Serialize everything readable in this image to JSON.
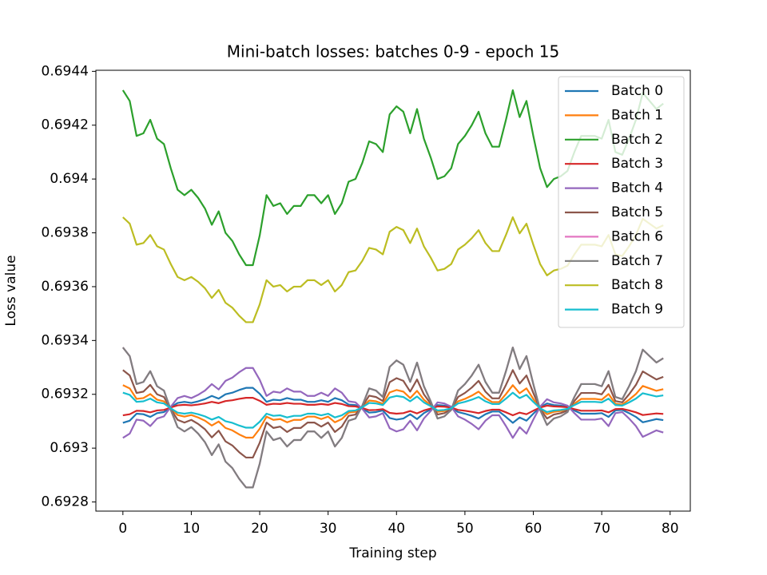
{
  "chart_data": {
    "type": "line",
    "title": "Mini-batch losses: batches 0-9 - epoch 15",
    "x_label": "Training step",
    "y_label": "Loss value",
    "x": [
      0,
      1,
      2,
      3,
      4,
      5,
      6,
      7,
      8,
      9,
      10,
      11,
      12,
      13,
      14,
      15,
      16,
      17,
      18,
      19,
      20,
      21,
      22,
      23,
      24,
      25,
      26,
      27,
      28,
      29,
      30,
      31,
      32,
      33,
      34,
      35,
      36,
      37,
      38,
      39,
      40,
      41,
      42,
      43,
      44,
      45,
      46,
      47,
      48,
      49,
      50,
      51,
      52,
      53,
      54,
      55,
      56,
      57,
      58,
      59,
      60,
      61,
      62,
      63,
      64,
      65,
      66,
      67,
      68,
      69,
      70,
      71,
      72,
      73,
      74,
      75,
      76,
      77,
      78,
      79
    ],
    "xlim": [
      -3.95,
      82.95
    ],
    "xticks": [
      0,
      10,
      20,
      30,
      40,
      50,
      60,
      70,
      80
    ],
    "ylim": [
      0.692766,
      0.694404
    ],
    "yticks": [
      0.6928,
      0.693,
      0.6932,
      0.6934,
      0.6936,
      0.6938,
      0.694,
      0.6942,
      0.6944
    ],
    "legend": "upper right",
    "grid": false,
    "series": [
      {
        "name": "Batch 0",
        "color": "#1f77b4",
        "values": [
          0.693094,
          0.693102,
          0.693128,
          0.693126,
          0.693116,
          0.69313,
          0.693134,
          0.693152,
          0.693168,
          0.693172,
          0.693168,
          0.693174,
          0.693182,
          0.693194,
          0.693184,
          0.6932,
          0.693206,
          0.693216,
          0.693224,
          0.693224,
          0.693202,
          0.693172,
          0.69318,
          0.693178,
          0.693186,
          0.69318,
          0.69318,
          0.693172,
          0.693172,
          0.693178,
          0.693172,
          0.693186,
          0.693178,
          0.693162,
          0.69316,
          0.693148,
          0.693132,
          0.693134,
          0.69314,
          0.693112,
          0.693106,
          0.69311,
          0.693126,
          0.693108,
          0.69313,
          0.693144,
          0.69316,
          0.693158,
          0.693152,
          0.693134,
          0.693128,
          0.69312,
          0.69311,
          0.693126,
          0.693136,
          0.693136,
          0.693116,
          0.693094,
          0.693114,
          0.693102,
          0.693128,
          0.693152,
          0.693166,
          0.69316,
          0.693158,
          0.693154,
          0.69314,
          0.693128,
          0.693128,
          0.693128,
          0.69313,
          0.693116,
          0.69314,
          0.693142,
          0.69313,
          0.693116,
          0.693096,
          0.693102,
          0.693108,
          0.693104
        ]
      },
      {
        "name": "Batch 1",
        "color": "#ff7f0e",
        "values": [
          0.693234,
          0.693222,
          0.693183,
          0.693186,
          0.693201,
          0.69318,
          0.693174,
          0.693147,
          0.693123,
          0.693117,
          0.693123,
          0.693114,
          0.693102,
          0.693084,
          0.693099,
          0.693075,
          0.693066,
          0.693051,
          0.693039,
          0.693039,
          0.693072,
          0.693117,
          0.693105,
          0.693108,
          0.693096,
          0.693105,
          0.693105,
          0.693117,
          0.693117,
          0.693108,
          0.693117,
          0.693096,
          0.693108,
          0.693132,
          0.693135,
          0.693153,
          0.693177,
          0.693174,
          0.693165,
          0.693207,
          0.693216,
          0.69321,
          0.693186,
          0.693213,
          0.69318,
          0.693159,
          0.693135,
          0.693138,
          0.693147,
          0.693174,
          0.693183,
          0.693195,
          0.69321,
          0.693186,
          0.693171,
          0.693171,
          0.693201,
          0.693234,
          0.693204,
          0.693222,
          0.693183,
          0.693147,
          0.693126,
          0.693135,
          0.693138,
          0.693144,
          0.693165,
          0.693183,
          0.693183,
          0.693183,
          0.69318,
          0.693201,
          0.693165,
          0.693162,
          0.69318,
          0.693201,
          0.693231,
          0.693222,
          0.693213,
          0.693219
        ]
      },
      {
        "name": "Batch 2",
        "color": "#2ca02c",
        "values": [
          0.69433,
          0.69429,
          0.69416,
          0.69417,
          0.69422,
          0.69415,
          0.69413,
          0.69404,
          0.69396,
          0.69394,
          0.69396,
          0.69393,
          0.69389,
          0.69383,
          0.69388,
          0.6938,
          0.69377,
          0.69372,
          0.69368,
          0.69368,
          0.69379,
          0.69394,
          0.6939,
          0.69391,
          0.69387,
          0.6939,
          0.6939,
          0.69394,
          0.69394,
          0.69391,
          0.69394,
          0.69387,
          0.69391,
          0.69399,
          0.694,
          0.69406,
          0.69414,
          0.69413,
          0.6941,
          0.69424,
          0.69427,
          0.69425,
          0.69417,
          0.69426,
          0.69415,
          0.69408,
          0.694,
          0.69401,
          0.69404,
          0.69413,
          0.69416,
          0.6942,
          0.69425,
          0.69417,
          0.69412,
          0.69412,
          0.69422,
          0.69433,
          0.69423,
          0.69429,
          0.69416,
          0.69404,
          0.69397,
          0.694,
          0.69401,
          0.69403,
          0.6941,
          0.69416,
          0.69416,
          0.69416,
          0.69415,
          0.69422,
          0.6941,
          0.69409,
          0.69415,
          0.69422,
          0.69432,
          0.69429,
          0.69426,
          0.69428
        ]
      },
      {
        "name": "Batch 3",
        "color": "#d62728",
        "values": [
          0.693122,
          0.693126,
          0.693139,
          0.693138,
          0.693133,
          0.69314,
          0.693142,
          0.693151,
          0.693159,
          0.693161,
          0.693159,
          0.693162,
          0.693166,
          0.693172,
          0.693167,
          0.693175,
          0.693178,
          0.693183,
          0.693187,
          0.693187,
          0.693176,
          0.693161,
          0.693165,
          0.693164,
          0.693168,
          0.693165,
          0.693165,
          0.693161,
          0.693161,
          0.693164,
          0.693161,
          0.693168,
          0.693164,
          0.693156,
          0.693155,
          0.693149,
          0.693141,
          0.693142,
          0.693145,
          0.693131,
          0.693128,
          0.69313,
          0.693138,
          0.693129,
          0.69314,
          0.693147,
          0.693155,
          0.693154,
          0.693151,
          0.693142,
          0.693139,
          0.693135,
          0.69313,
          0.693138,
          0.693143,
          0.693143,
          0.693133,
          0.693122,
          0.693132,
          0.693126,
          0.693139,
          0.693151,
          0.693158,
          0.693155,
          0.693154,
          0.693152,
          0.693145,
          0.693139,
          0.693139,
          0.693139,
          0.69314,
          0.693133,
          0.693145,
          0.693146,
          0.69314,
          0.693133,
          0.693123,
          0.693126,
          0.693129,
          0.693127
        ]
      },
      {
        "name": "Batch 4",
        "color": "#9467bd",
        "values": [
          0.693038,
          0.693054,
          0.693106,
          0.693102,
          0.693082,
          0.69311,
          0.693118,
          0.693154,
          0.693186,
          0.693194,
          0.693186,
          0.693198,
          0.693214,
          0.693238,
          0.693218,
          0.69325,
          0.693262,
          0.693282,
          0.693298,
          0.693298,
          0.693254,
          0.693194,
          0.69321,
          0.693206,
          0.693222,
          0.69321,
          0.69321,
          0.693194,
          0.693194,
          0.693206,
          0.693194,
          0.693222,
          0.693206,
          0.693174,
          0.69317,
          0.693146,
          0.693114,
          0.693118,
          0.69313,
          0.693074,
          0.693062,
          0.69307,
          0.693102,
          0.693066,
          0.69311,
          0.693138,
          0.69317,
          0.693166,
          0.693154,
          0.693118,
          0.693106,
          0.69309,
          0.69307,
          0.693102,
          0.693122,
          0.693122,
          0.693082,
          0.693038,
          0.693078,
          0.693054,
          0.693106,
          0.693154,
          0.693182,
          0.69317,
          0.693166,
          0.693158,
          0.69313,
          0.693106,
          0.693106,
          0.693106,
          0.69311,
          0.693082,
          0.69313,
          0.693134,
          0.69311,
          0.693082,
          0.693042,
          0.693054,
          0.693066,
          0.693058
        ]
      },
      {
        "name": "Batch 5",
        "color": "#8c564b",
        "values": [
          0.69329,
          0.69327,
          0.693205,
          0.69321,
          0.693235,
          0.6932,
          0.69319,
          0.693145,
          0.693105,
          0.693095,
          0.693105,
          0.69309,
          0.69307,
          0.69304,
          0.693065,
          0.693025,
          0.69301,
          0.692985,
          0.692965,
          0.692965,
          0.69302,
          0.693095,
          0.693075,
          0.69308,
          0.69306,
          0.693075,
          0.693075,
          0.693095,
          0.693095,
          0.69308,
          0.693095,
          0.69306,
          0.69308,
          0.69312,
          0.693125,
          0.693155,
          0.693195,
          0.69319,
          0.693175,
          0.693245,
          0.69326,
          0.69325,
          0.69321,
          0.693255,
          0.6932,
          0.693165,
          0.693125,
          0.69313,
          0.693145,
          0.69319,
          0.693205,
          0.693225,
          0.69325,
          0.69321,
          0.693185,
          0.693185,
          0.693235,
          0.69329,
          0.69324,
          0.69327,
          0.693205,
          0.693145,
          0.69311,
          0.693125,
          0.69313,
          0.69314,
          0.693175,
          0.693205,
          0.693205,
          0.693205,
          0.6932,
          0.693235,
          0.693175,
          0.69317,
          0.6932,
          0.693235,
          0.693285,
          0.69327,
          0.693255,
          0.693265
        ]
      },
      {
        "name": "Batch 6",
        "color": "#e377c2",
        "values": [
          0.693374,
          0.693342,
          0.693238,
          0.693246,
          0.693286,
          0.69323,
          0.693214,
          0.693142,
          0.693078,
          0.693062,
          0.693078,
          0.693054,
          0.693022,
          0.692974,
          0.693014,
          0.69295,
          0.692926,
          0.692886,
          0.692854,
          0.692854,
          0.692942,
          0.693062,
          0.69303,
          0.693038,
          0.693006,
          0.69303,
          0.69303,
          0.693062,
          0.693062,
          0.693038,
          0.693062,
          0.693006,
          0.693038,
          0.693102,
          0.69311,
          0.693158,
          0.693222,
          0.693214,
          0.69319,
          0.693302,
          0.693326,
          0.69331,
          0.693246,
          0.693318,
          0.69323,
          0.693174,
          0.69311,
          0.693118,
          0.693142,
          0.693214,
          0.693238,
          0.69327,
          0.69331,
          0.693246,
          0.693206,
          0.693206,
          0.693286,
          0.693374,
          0.693294,
          0.693342,
          0.693238,
          0.693142,
          0.693086,
          0.69311,
          0.693118,
          0.693134,
          0.69319,
          0.693238,
          0.693238,
          0.693238,
          0.69323,
          0.693286,
          0.69319,
          0.693182,
          0.69323,
          0.693286,
          0.693366,
          0.693342,
          0.693318,
          0.693334
        ]
      },
      {
        "name": "Batch 7",
        "color": "#7f7f7f",
        "values": [
          0.693374,
          0.693342,
          0.693238,
          0.693246,
          0.693286,
          0.69323,
          0.693214,
          0.693142,
          0.693078,
          0.693062,
          0.693078,
          0.693054,
          0.693022,
          0.692974,
          0.693014,
          0.69295,
          0.692926,
          0.692886,
          0.692854,
          0.692854,
          0.692942,
          0.693062,
          0.69303,
          0.693038,
          0.693006,
          0.69303,
          0.69303,
          0.693062,
          0.693062,
          0.693038,
          0.693062,
          0.693006,
          0.693038,
          0.693102,
          0.69311,
          0.693158,
          0.693222,
          0.693214,
          0.69319,
          0.693302,
          0.693326,
          0.69331,
          0.693246,
          0.693318,
          0.69323,
          0.693174,
          0.69311,
          0.693118,
          0.693142,
          0.693214,
          0.693238,
          0.69327,
          0.69331,
          0.693246,
          0.693206,
          0.693206,
          0.693286,
          0.693374,
          0.693294,
          0.693342,
          0.693238,
          0.693142,
          0.693086,
          0.69311,
          0.693118,
          0.693134,
          0.69319,
          0.693238,
          0.693238,
          0.693238,
          0.69323,
          0.693286,
          0.69319,
          0.693182,
          0.69323,
          0.693286,
          0.693366,
          0.693342,
          0.693318,
          0.693334
        ]
      },
      {
        "name": "Batch 8",
        "color": "#bcbd22",
        "values": [
          0.693858,
          0.693834,
          0.693756,
          0.693762,
          0.693792,
          0.69375,
          0.693738,
          0.693684,
          0.693636,
          0.693624,
          0.693636,
          0.693618,
          0.693594,
          0.693558,
          0.693588,
          0.69354,
          0.693522,
          0.693492,
          0.693468,
          0.693468,
          0.693534,
          0.693624,
          0.6936,
          0.693606,
          0.693582,
          0.6936,
          0.6936,
          0.693624,
          0.693624,
          0.693606,
          0.693624,
          0.693582,
          0.693606,
          0.693654,
          0.69366,
          0.693696,
          0.693744,
          0.693738,
          0.69372,
          0.693804,
          0.693822,
          0.69381,
          0.693762,
          0.693816,
          0.69375,
          0.693708,
          0.69366,
          0.693666,
          0.693684,
          0.693738,
          0.693756,
          0.69378,
          0.69381,
          0.693762,
          0.693732,
          0.693732,
          0.693792,
          0.693858,
          0.693798,
          0.693834,
          0.693756,
          0.693684,
          0.693642,
          0.69366,
          0.693666,
          0.693678,
          0.69372,
          0.693756,
          0.693756,
          0.693756,
          0.69375,
          0.693792,
          0.69372,
          0.693714,
          0.69375,
          0.693792,
          0.693852,
          0.693834,
          0.693816,
          0.693828
        ]
      },
      {
        "name": "Batch 9",
        "color": "#17becf",
        "values": [
          0.693206,
          0.693198,
          0.693172,
          0.693174,
          0.693184,
          0.69317,
          0.693166,
          0.693148,
          0.693132,
          0.693128,
          0.693132,
          0.693126,
          0.693118,
          0.693106,
          0.693116,
          0.6931,
          0.693094,
          0.693084,
          0.693076,
          0.693076,
          0.693098,
          0.693128,
          0.69312,
          0.693122,
          0.693114,
          0.69312,
          0.69312,
          0.693128,
          0.693128,
          0.693122,
          0.693128,
          0.693114,
          0.693122,
          0.693138,
          0.69314,
          0.693152,
          0.693168,
          0.693166,
          0.69316,
          0.693188,
          0.693194,
          0.69319,
          0.693174,
          0.693192,
          0.69317,
          0.693156,
          0.69314,
          0.693142,
          0.693148,
          0.693166,
          0.693172,
          0.69318,
          0.69319,
          0.693174,
          0.693164,
          0.693164,
          0.693184,
          0.693206,
          0.693186,
          0.693198,
          0.693172,
          0.693148,
          0.693134,
          0.69314,
          0.693142,
          0.693146,
          0.69316,
          0.693172,
          0.693172,
          0.693172,
          0.69317,
          0.693184,
          0.69316,
          0.693158,
          0.69317,
          0.693184,
          0.693204,
          0.693198,
          0.693192,
          0.693196
        ]
      }
    ]
  }
}
